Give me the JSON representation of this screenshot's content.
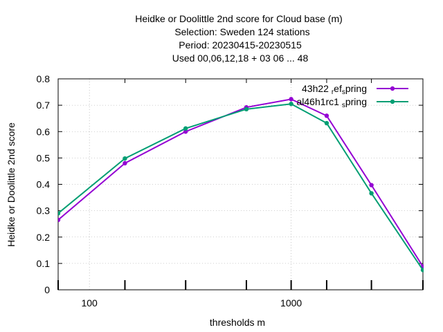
{
  "chart_data": {
    "type": "line",
    "title_lines": [
      "Heidke or Doolittle 2nd score  for Cloud base (m)",
      "Selection: Sweden    124 stations",
      "Period: 20230415-20230515",
      "Used  00,06,12,18  + 03 06 ... 48"
    ],
    "xlabel": "thresholds m",
    "ylabel": "Heidke or Doolittle 2nd score",
    "x_scale": "log",
    "xlim": [
      70,
      4500
    ],
    "ylim": [
      0,
      0.8
    ],
    "x_ticks": [
      100,
      1000
    ],
    "x_tick_labels": [
      "100",
      "1000"
    ],
    "y_ticks": [
      0,
      0.1,
      0.2,
      0.3,
      0.4,
      0.5,
      0.6,
      0.7,
      0.8
    ],
    "y_tick_labels": [
      "0",
      "0.1",
      "0.2",
      "0.3",
      "0.4",
      "0.5",
      "0.6",
      "0.7",
      "0.8"
    ],
    "marker_x": [
      70,
      150,
      300,
      600,
      1000,
      1500,
      2500,
      4500
    ],
    "grid": true,
    "legend_position": "top-right",
    "series": [
      {
        "name": "43h22 ref spring",
        "legend_parts": [
          "43h22 ",
          "r",
          "ef",
          "s",
          "pring"
        ],
        "color": "#9400d3",
        "x": [
          70,
          150,
          300,
          600,
          1000,
          1500,
          2500,
          4500
        ],
        "y": [
          0.265,
          0.48,
          0.6,
          0.692,
          0.723,
          0.66,
          0.397,
          0.088
        ]
      },
      {
        "name": "al46h1rc1 spring",
        "legend_parts": [
          "al46h1rc1 ",
          "s",
          "pring"
        ],
        "color": "#009e73",
        "x": [
          70,
          150,
          300,
          600,
          1000,
          1500,
          2500,
          4500
        ],
        "y": [
          0.29,
          0.498,
          0.612,
          0.685,
          0.705,
          0.632,
          0.366,
          0.075
        ]
      }
    ]
  }
}
